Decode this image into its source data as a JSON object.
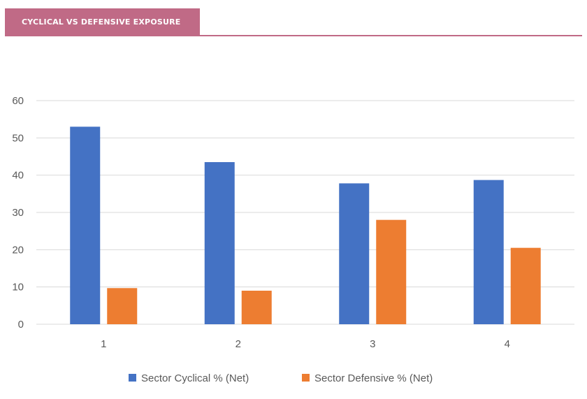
{
  "header": {
    "title": "CYCLICAL VS DEFENSIVE EXPOSURE"
  },
  "colors": {
    "accent": "#c06a86",
    "cyclical": "#4472c4",
    "defensive": "#ed7d31",
    "grid": "#d9d9d9"
  },
  "chart_data": {
    "type": "bar",
    "title": "",
    "xlabel": "",
    "ylabel": "",
    "categories": [
      "1",
      "2",
      "3",
      "4"
    ],
    "series": [
      {
        "name": "Sector Cyclical % (Net)",
        "values": [
          53,
          43.5,
          37.8,
          38.7
        ]
      },
      {
        "name": "Sector Defensive % (Net)",
        "values": [
          9.7,
          9,
          28,
          20.5
        ]
      }
    ],
    "ylim": [
      0,
      60
    ],
    "yticks": [
      "0",
      "10",
      "20",
      "30",
      "40",
      "50",
      "60"
    ],
    "grid": true,
    "legend": "bottom-center"
  }
}
